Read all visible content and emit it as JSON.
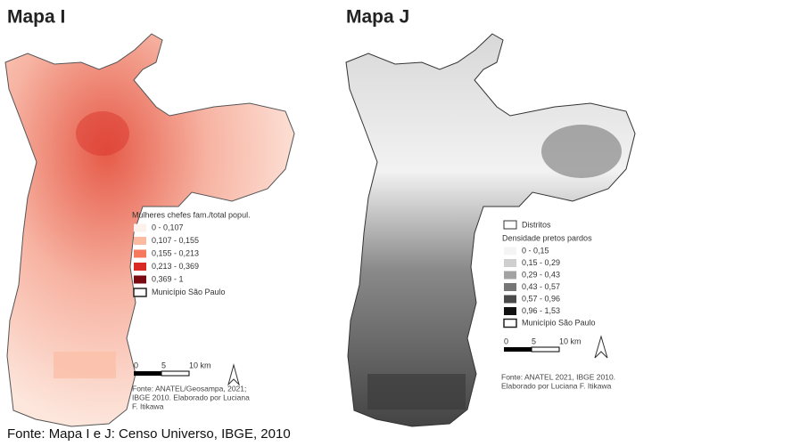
{
  "maps": [
    {
      "title": "Mapa I",
      "legend": {
        "title": "Mulheres chefes fam./total popul.",
        "items": [
          {
            "label": "0 - 0,107",
            "color": "#fdf1ec"
          },
          {
            "label": "0,107 - 0,155",
            "color": "#fcbba1"
          },
          {
            "label": "0,155 - 0,213",
            "color": "#f6795e"
          },
          {
            "label": "0,213 - 0,369",
            "color": "#d92a26"
          },
          {
            "label": "0,369 - 1",
            "color": "#7a0a12"
          }
        ],
        "boundary": "Município São Paulo"
      },
      "scale": [
        "0",
        "5",
        "10 km"
      ],
      "source": [
        "Fonte:  ANATEL/Geosampa,  2021;",
        "IBGE 2010. Elaborado por Luciana",
        "F. Itikawa"
      ]
    },
    {
      "title": "Mapa J",
      "legend": {
        "districts": "Distritos",
        "title": "Densidade pretos pardos",
        "items": [
          {
            "label": "0 - 0,15",
            "color": "#f4f4f4"
          },
          {
            "label": "0,15 - 0,29",
            "color": "#cfcfcf"
          },
          {
            "label": "0,29 - 0,43",
            "color": "#a3a3a3"
          },
          {
            "label": "0,43 - 0,57",
            "color": "#767676"
          },
          {
            "label": "0,57 - 0,96",
            "color": "#4a4a4a"
          },
          {
            "label": "0,96 - 1,53",
            "color": "#111111"
          }
        ],
        "boundary": "Município São Paulo"
      },
      "scale": [
        "0",
        "5",
        "10 km"
      ],
      "source": [
        "Fonte:  ANATEL 2021,  IBGE 2010.",
        "Elaborado por Luciana F. Itikawa"
      ]
    }
  ],
  "footer": "Fonte: Mapa I e J: Censo Universo, IBGE, 2010"
}
